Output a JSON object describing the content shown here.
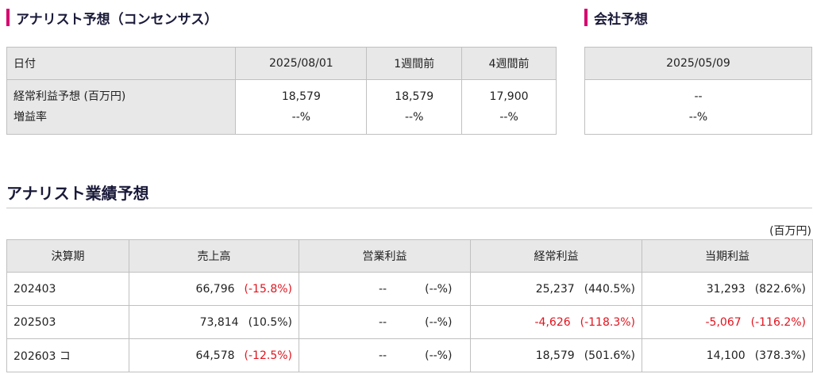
{
  "analyst": {
    "title": "アナリスト予想（コンセンサス）",
    "headers": [
      "日付",
      "2025/08/01",
      "1週間前",
      "4週間前"
    ],
    "row_label_1": "経常利益予想 (百万円)",
    "row_label_2": "増益率",
    "values": [
      {
        "value": "18,579",
        "rate": "--%"
      },
      {
        "value": "18,579",
        "rate": "--%"
      },
      {
        "value": "17,900",
        "rate": "--%"
      }
    ]
  },
  "company": {
    "title": "会社予想",
    "date": "2025/05/09",
    "value": "--",
    "rate": "--%"
  },
  "performance": {
    "title": "アナリスト業績予想",
    "unit": "(百万円)",
    "headers": [
      "決算期",
      "売上高",
      "営業利益",
      "経常利益",
      "当期利益"
    ],
    "rows": [
      {
        "period": "202403",
        "sales": "66,796",
        "sales_pct": "(-15.8%)",
        "op": "--",
        "op_pct": "(--%)",
        "ordinary": "25,237",
        "ordinary_pct": "(440.5%)",
        "net": "31,293",
        "net_pct": "(822.6%)"
      },
      {
        "period": "202503",
        "sales": "73,814",
        "sales_pct": "(10.5%)",
        "op": "--",
        "op_pct": "(--%)",
        "ordinary": "-4,626",
        "ordinary_pct": "(-118.3%)",
        "net": "-5,067",
        "net_pct": "(-116.2%)"
      },
      {
        "period": "202603 コ",
        "sales": "64,578",
        "sales_pct": "(-12.5%)",
        "op": "--",
        "op_pct": "(--%)",
        "ordinary": "18,579",
        "ordinary_pct": "(501.6%)",
        "net": "14,100",
        "net_pct": "(378.3%)"
      }
    ]
  },
  "colors": {
    "accent": "#d6006f",
    "negative": "#e0141e",
    "header_bg": "#e8e8e8"
  }
}
